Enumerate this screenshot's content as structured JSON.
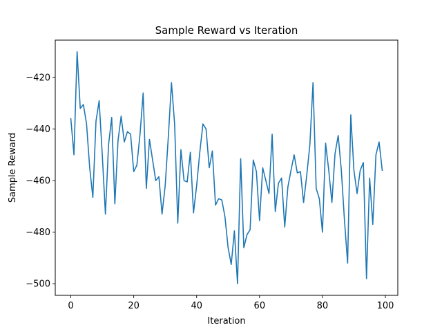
{
  "chart_data": {
    "type": "line",
    "title": "Sample Reward vs Iteration",
    "xlabel": "Iteration",
    "ylabel": "Sample Reward",
    "xlim": [
      -4.95,
      103.95
    ],
    "ylim": [
      -504.5,
      -405.5
    ],
    "xticks": [
      0,
      20,
      40,
      60,
      80,
      100
    ],
    "yticks": [
      -500,
      -480,
      -460,
      -440,
      -420
    ],
    "xtick_labels": [
      "0",
      "20",
      "40",
      "60",
      "80",
      "100"
    ],
    "ytick_labels": [
      "−500",
      "−480",
      "−460",
      "−440",
      "−420"
    ],
    "grid": false,
    "legend": null,
    "series": [
      {
        "color": "#1f77b4",
        "x": [
          0,
          1,
          2,
          3,
          4,
          5,
          6,
          7,
          8,
          9,
          10,
          11,
          12,
          13,
          14,
          15,
          16,
          17,
          18,
          19,
          20,
          21,
          22,
          23,
          24,
          25,
          26,
          27,
          28,
          29,
          30,
          31,
          32,
          33,
          34,
          35,
          36,
          37,
          38,
          39,
          40,
          41,
          42,
          43,
          44,
          45,
          46,
          47,
          48,
          49,
          50,
          51,
          52,
          53,
          54,
          55,
          56,
          57,
          58,
          59,
          60,
          61,
          62,
          63,
          64,
          65,
          66,
          67,
          68,
          69,
          70,
          71,
          72,
          73,
          74,
          75,
          76,
          77,
          78,
          79,
          80,
          81,
          82,
          83,
          84,
          85,
          86,
          87,
          88,
          89,
          90,
          91,
          92,
          93,
          94,
          95,
          96,
          97,
          98,
          99
        ],
        "values": [
          -436,
          -450,
          -410,
          -432,
          -430.5,
          -438,
          -455,
          -466.5,
          -437,
          -429,
          -450,
          -473,
          -446,
          -435.5,
          -469,
          -444.5,
          -435,
          -445,
          -441,
          -442,
          -456.5,
          -454,
          -442,
          -426,
          -463,
          -444,
          -452,
          -460,
          -458.5,
          -473,
          -462,
          -443,
          -422,
          -438,
          -476.5,
          -448,
          -460,
          -460.5,
          -449,
          -472.5,
          -462,
          -449,
          -438,
          -440,
          -455,
          -448.5,
          -469.5,
          -467,
          -467.5,
          -474,
          -486,
          -492.5,
          -479.5,
          -500,
          -451.5,
          -486,
          -481,
          -479,
          -452,
          -456.5,
          -475.5,
          -455,
          -460,
          -465,
          -442,
          -472,
          -461,
          -459,
          -478,
          -462.5,
          -456,
          -450,
          -457,
          -456.5,
          -468.5,
          -458,
          -446,
          -422,
          -463,
          -467,
          -480,
          -445.5,
          -456,
          -468.5,
          -449.5,
          -442.5,
          -456,
          -475.5,
          -492,
          -434.5,
          -456,
          -465,
          -456,
          -453,
          -498,
          -459,
          -477,
          -450,
          -445,
          -456
        ]
      }
    ]
  }
}
